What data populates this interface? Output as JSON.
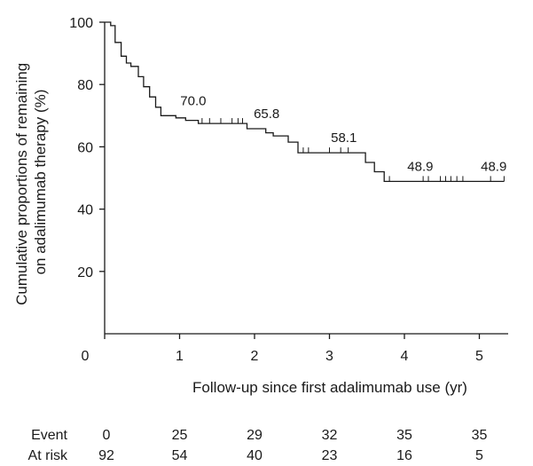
{
  "chart_data": {
    "type": "line",
    "ylabel_line1": "Cumulative proportions of remaining",
    "ylabel_line2": "on adalimumab therapy (%)",
    "xlabel": "Follow-up since first adalimumab use (yr)",
    "x_ticks": [
      "0",
      "1",
      "2",
      "3",
      "4",
      "5"
    ],
    "y_ticks": [
      "20",
      "40",
      "60",
      "80",
      "100"
    ],
    "xlim": [
      0,
      5.5
    ],
    "ylim": [
      0,
      100
    ],
    "step_points": [
      [
        0,
        100
      ],
      [
        0.08,
        100
      ],
      [
        0.08,
        98.9
      ],
      [
        0.14,
        98.9
      ],
      [
        0.14,
        93.5
      ],
      [
        0.22,
        93.5
      ],
      [
        0.22,
        89.1
      ],
      [
        0.29,
        89.1
      ],
      [
        0.29,
        86.9
      ],
      [
        0.35,
        86.9
      ],
      [
        0.35,
        85.8
      ],
      [
        0.45,
        85.8
      ],
      [
        0.45,
        82.5
      ],
      [
        0.52,
        82.5
      ],
      [
        0.52,
        79.3
      ],
      [
        0.6,
        79.3
      ],
      [
        0.6,
        76.0
      ],
      [
        0.68,
        76.0
      ],
      [
        0.68,
        72.7
      ],
      [
        0.75,
        72.7
      ],
      [
        0.75,
        70.0
      ],
      [
        0.95,
        70.0
      ],
      [
        0.95,
        69.3
      ],
      [
        1.08,
        69.3
      ],
      [
        1.08,
        68.5
      ],
      [
        1.25,
        68.5
      ],
      [
        1.25,
        67.5
      ],
      [
        1.9,
        67.5
      ],
      [
        1.9,
        65.8
      ],
      [
        2.15,
        65.8
      ],
      [
        2.15,
        64.5
      ],
      [
        2.25,
        64.5
      ],
      [
        2.25,
        63.5
      ],
      [
        2.45,
        63.5
      ],
      [
        2.45,
        61.5
      ],
      [
        2.58,
        61.5
      ],
      [
        2.58,
        58.1
      ],
      [
        3.48,
        58.1
      ],
      [
        3.48,
        55.0
      ],
      [
        3.6,
        55.0
      ],
      [
        3.6,
        52.0
      ],
      [
        3.73,
        52.0
      ],
      [
        3.73,
        48.9
      ],
      [
        5.33,
        48.9
      ]
    ],
    "censor_marks": [
      [
        1.3,
        67.5
      ],
      [
        1.4,
        67.5
      ],
      [
        1.55,
        67.5
      ],
      [
        1.7,
        67.5
      ],
      [
        1.78,
        67.5
      ],
      [
        1.84,
        67.5
      ],
      [
        2.65,
        58.1
      ],
      [
        2.72,
        58.1
      ],
      [
        3.0,
        58.1
      ],
      [
        3.15,
        58.1
      ],
      [
        3.25,
        58.1
      ],
      [
        3.8,
        48.9
      ],
      [
        4.25,
        48.9
      ],
      [
        4.32,
        48.9
      ],
      [
        4.48,
        48.9
      ],
      [
        4.55,
        48.9
      ],
      [
        4.62,
        48.9
      ],
      [
        4.7,
        48.9
      ],
      [
        4.78,
        48.9
      ],
      [
        5.15,
        48.9
      ]
    ],
    "annotations": [
      {
        "x": 0.95,
        "y": 70.0,
        "text": "70.0"
      },
      {
        "x": 1.93,
        "y": 65.8,
        "text": "65.8"
      },
      {
        "x": 2.96,
        "y": 58.1,
        "text": "58.1"
      },
      {
        "x": 3.98,
        "y": 48.9,
        "text": "48.9"
      },
      {
        "x": 4.96,
        "y": 48.9,
        "text": "48.9"
      }
    ],
    "risk_table": {
      "times": [
        0,
        1,
        2,
        3,
        4,
        5
      ],
      "rows": [
        {
          "label": "Event",
          "values": [
            "0",
            "25",
            "29",
            "32",
            "35",
            "35"
          ]
        },
        {
          "label": "At risk",
          "values": [
            "92",
            "54",
            "40",
            "23",
            "16",
            "5"
          ]
        }
      ]
    }
  }
}
